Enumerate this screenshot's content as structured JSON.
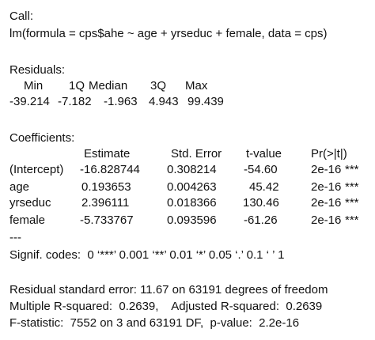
{
  "call": {
    "heading": "Call:",
    "formula": "lm(formula = cps$ahe ~ age + yrseduc + female, data = cps)"
  },
  "residuals": {
    "heading": "Residuals:",
    "headers": [
      "Min",
      "1Q",
      "Median",
      "3Q",
      "Max"
    ],
    "values": [
      "-39.214",
      "-7.182",
      "-1.963",
      "4.943",
      "99.439"
    ]
  },
  "coefficients": {
    "heading": "Coefficients:",
    "headers": [
      "Estimate",
      "Std. Error",
      "t-value",
      "Pr(>|t|)"
    ],
    "rows": [
      {
        "term": "(Intercept)",
        "estimate": "-16.828744",
        "std_error": "0.308214",
        "t_value": "-54.60",
        "p_value": "2e-16",
        "stars": "***"
      },
      {
        "term": "age",
        "estimate": "0.193653",
        "std_error": "0.004263",
        "t_value": "45.42",
        "p_value": "2e-16",
        "stars": "***"
      },
      {
        "term": "yrseduc",
        "estimate": "2.396111",
        "std_error": "0.018366",
        "t_value": "130.46",
        "p_value": "2e-16",
        "stars": "***"
      },
      {
        "term": "female",
        "estimate": "-5.733767",
        "std_error": "0.093596",
        "t_value": "-61.26",
        "p_value": "2e-16",
        "stars": "***"
      }
    ],
    "separator": "---",
    "signif_codes": "Signif. codes:  0 ‘***’ 0.001 ‘**’ 0.01 ‘*’ 0.05 ‘.’ 0.1 ‘ ’ 1"
  },
  "summary": {
    "residual_se": "Residual standard error: 11.67 on 63191 degrees of freedom",
    "r_squared": "Multiple R-squared:  0.2639,    Adjusted R-squared:  0.2639",
    "f_statistic": "F-statistic:  7552 on 3 and 63191 DF,  p-value:  2.2e-16"
  }
}
